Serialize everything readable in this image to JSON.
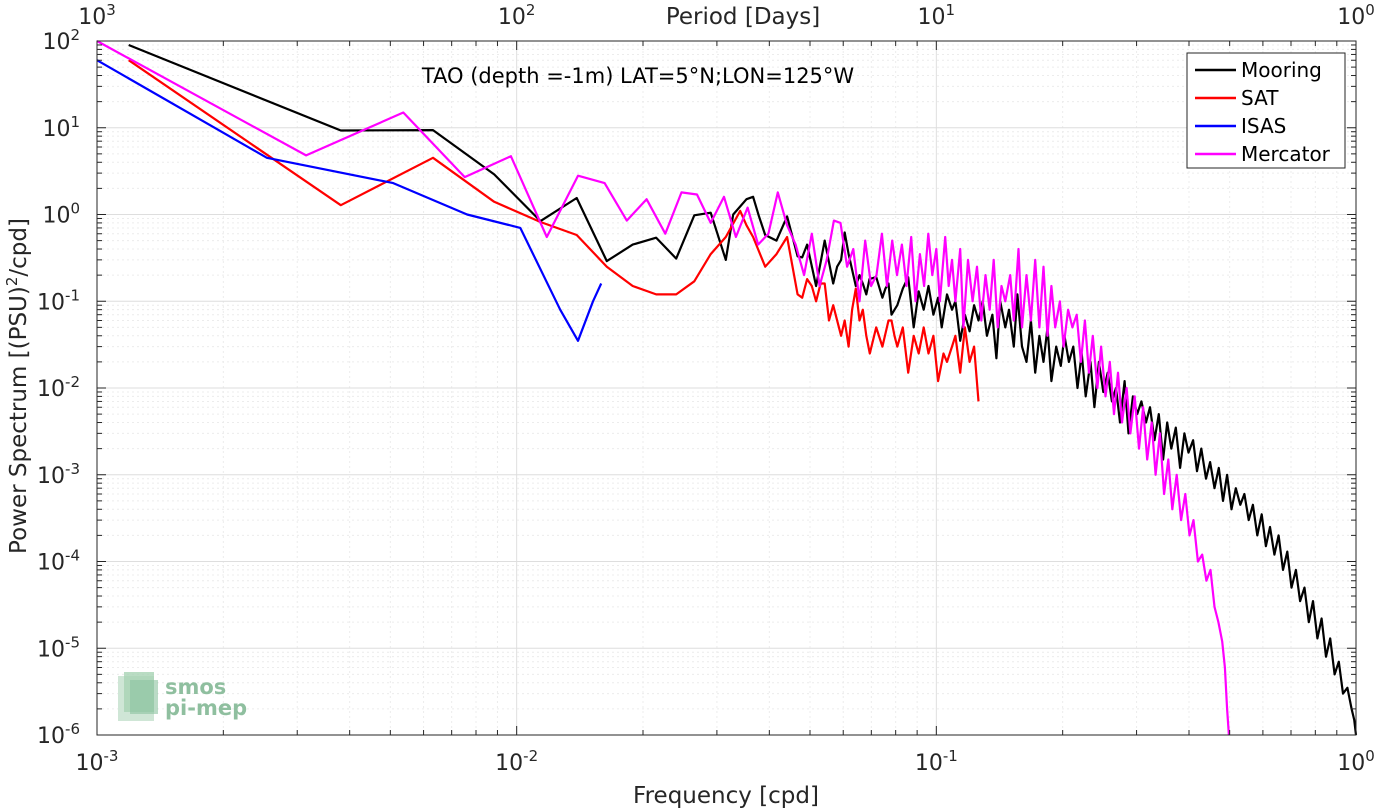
{
  "chart_data": {
    "type": "line",
    "title": "TAO (depth =-1m) LAT=5°N;LON=125°W",
    "xlabel": "Frequency [cpd]",
    "ylabel": "Power Spectrum [(PSU)",
    "ylabel_sup": "2",
    "ylabel_tail": "/cpd]",
    "top_xlabel": "Period [Days]",
    "xscale": "log",
    "yscale": "log",
    "xlim": [
      0.001,
      1
    ],
    "ylim": [
      1e-06,
      100
    ],
    "grid": true,
    "legend_position": "top-right",
    "x_ticks": [
      {
        "base": "10",
        "exp": "-3"
      },
      {
        "base": "10",
        "exp": "-2"
      },
      {
        "base": "10",
        "exp": "-1"
      },
      {
        "base": "10",
        "exp": "0"
      }
    ],
    "top_ticks": [
      {
        "base": "10",
        "exp": "3"
      },
      {
        "base": "10",
        "exp": "2"
      },
      {
        "base": "10",
        "exp": "1"
      },
      {
        "base": "10",
        "exp": "0"
      }
    ],
    "y_ticks": [
      {
        "base": "10",
        "exp": "2"
      },
      {
        "base": "10",
        "exp": "1"
      },
      {
        "base": "10",
        "exp": "0"
      },
      {
        "base": "10",
        "exp": "-1"
      },
      {
        "base": "10",
        "exp": "-2"
      },
      {
        "base": "10",
        "exp": "-3"
      },
      {
        "base": "10",
        "exp": "-4"
      },
      {
        "base": "10",
        "exp": "-5"
      },
      {
        "base": "10",
        "exp": "-6"
      }
    ],
    "series": [
      {
        "name": "Mooring",
        "color": "#000000",
        "x": [
          0.00119,
          0.00381,
          0.00632,
          0.00884,
          0.0114,
          0.0139,
          0.0164,
          0.0189,
          0.0215,
          0.024,
          0.0265,
          0.029,
          0.0315,
          0.0328,
          0.0353,
          0.0366,
          0.0378,
          0.0391,
          0.0416,
          0.0441,
          0.0467,
          0.0479,
          0.0492,
          0.0517,
          0.053,
          0.0542,
          0.0568,
          0.058,
          0.0593,
          0.0605,
          0.0618,
          0.0643,
          0.0656,
          0.0668,
          0.0681,
          0.0693,
          0.0719,
          0.0744,
          0.0756,
          0.0769,
          0.0782,
          0.0807,
          0.0832,
          0.0857,
          0.0883,
          0.0908,
          0.0933,
          0.0958,
          0.0984,
          0.101,
          0.103,
          0.106,
          0.109,
          0.111,
          0.114,
          0.117,
          0.12,
          0.123,
          0.126,
          0.129,
          0.132,
          0.136,
          0.139,
          0.142,
          0.146,
          0.149,
          0.153,
          0.156,
          0.16,
          0.164,
          0.168,
          0.172,
          0.176,
          0.18,
          0.184,
          0.188,
          0.193,
          0.198,
          0.202,
          0.207,
          0.212,
          0.217,
          0.222,
          0.227,
          0.233,
          0.238,
          0.244,
          0.25,
          0.256,
          0.262,
          0.268,
          0.274,
          0.281,
          0.287,
          0.294,
          0.301,
          0.308,
          0.316,
          0.323,
          0.331,
          0.339,
          0.347,
          0.355,
          0.363,
          0.372,
          0.381,
          0.39,
          0.399,
          0.409,
          0.418,
          0.428,
          0.439,
          0.449,
          0.46,
          0.471,
          0.482,
          0.493,
          0.505,
          0.517,
          0.53,
          0.542,
          0.555,
          0.568,
          0.582,
          0.596,
          0.61,
          0.624,
          0.639,
          0.654,
          0.67,
          0.686,
          0.702,
          0.719,
          0.736,
          0.754,
          0.772,
          0.79,
          0.809,
          0.828,
          0.848,
          0.868,
          0.889,
          0.91,
          0.931,
          0.954,
          0.976,
          0.99,
          1.0
        ],
        "values": [
          90,
          9.3,
          9.4,
          2.9,
          0.84,
          1.55,
          0.29,
          0.45,
          0.54,
          0.31,
          0.98,
          1.05,
          0.3,
          1.0,
          1.5,
          1.6,
          0.95,
          0.58,
          0.5,
          0.95,
          0.33,
          0.32,
          0.45,
          0.15,
          0.28,
          0.5,
          0.16,
          0.25,
          0.3,
          0.62,
          0.35,
          0.15,
          0.2,
          0.16,
          0.12,
          0.18,
          0.19,
          0.11,
          0.14,
          0.16,
          0.07,
          0.09,
          0.14,
          0.19,
          0.05,
          0.13,
          0.08,
          0.15,
          0.07,
          0.11,
          0.05,
          0.12,
          0.08,
          0.1,
          0.035,
          0.07,
          0.045,
          0.09,
          0.06,
          0.1,
          0.04,
          0.07,
          0.022,
          0.1,
          0.05,
          0.08,
          0.03,
          0.12,
          0.03,
          0.02,
          0.06,
          0.015,
          0.04,
          0.02,
          0.05,
          0.012,
          0.03,
          0.018,
          0.04,
          0.02,
          0.03,
          0.01,
          0.025,
          0.008,
          0.02,
          0.006,
          0.02,
          0.009,
          0.015,
          0.007,
          0.01,
          0.004,
          0.012,
          0.003,
          0.008,
          0.005,
          0.007,
          0.004,
          0.006,
          0.0025,
          0.005,
          0.0015,
          0.004,
          0.002,
          0.0035,
          0.0012,
          0.003,
          0.0018,
          0.0025,
          0.0011,
          0.002,
          0.0009,
          0.0014,
          0.0007,
          0.0012,
          0.0005,
          0.001,
          0.0004,
          0.0007,
          0.00045,
          0.0006,
          0.0003,
          0.00045,
          0.0002,
          0.00035,
          0.00015,
          0.00025,
          0.00012,
          0.0002,
          8e-05,
          0.00013,
          5e-05,
          8e-05,
          3.5e-05,
          5e-05,
          2e-05,
          3.5e-05,
          1.3e-05,
          2.2e-05,
          8e-06,
          1.3e-05,
          5e-06,
          7e-06,
          3e-06,
          3.5e-06,
          2e-06,
          1.5e-06,
          1e-06
        ]
      },
      {
        "name": "SAT",
        "color": "#ff0000",
        "x": [
          0.00119,
          0.00381,
          0.00632,
          0.00884,
          0.0114,
          0.0139,
          0.0164,
          0.0189,
          0.0215,
          0.024,
          0.0265,
          0.029,
          0.0315,
          0.0341,
          0.0353,
          0.0366,
          0.0391,
          0.0416,
          0.0441,
          0.0467,
          0.0479,
          0.0492,
          0.0505,
          0.0517,
          0.053,
          0.0542,
          0.0555,
          0.0568,
          0.0593,
          0.0605,
          0.0618,
          0.063,
          0.0643,
          0.0656,
          0.0668,
          0.0681,
          0.0694,
          0.0719,
          0.0744,
          0.0769,
          0.0782,
          0.0795,
          0.0807,
          0.0832,
          0.0857,
          0.0883,
          0.0908,
          0.0933,
          0.0958,
          0.0984,
          0.101,
          0.104,
          0.106,
          0.109,
          0.111,
          0.114,
          0.117,
          0.12,
          0.123,
          0.126
        ],
        "values": [
          60,
          1.28,
          4.5,
          1.4,
          0.82,
          0.58,
          0.25,
          0.15,
          0.12,
          0.12,
          0.17,
          0.35,
          0.55,
          1.1,
          0.75,
          0.55,
          0.25,
          0.35,
          0.55,
          0.12,
          0.11,
          0.18,
          0.15,
          0.1,
          0.16,
          0.16,
          0.06,
          0.09,
          0.04,
          0.06,
          0.03,
          0.08,
          0.14,
          0.06,
          0.08,
          0.04,
          0.025,
          0.05,
          0.03,
          0.06,
          0.06,
          0.04,
          0.03,
          0.05,
          0.015,
          0.04,
          0.025,
          0.05,
          0.025,
          0.04,
          0.012,
          0.025,
          0.02,
          0.03,
          0.04,
          0.015,
          0.05,
          0.02,
          0.03,
          0.007
        ]
      },
      {
        "name": "ISAS",
        "color": "#0000ff",
        "x": [
          0.001,
          0.00254,
          0.00508,
          0.00762,
          0.0102,
          0.0127,
          0.014,
          0.0152,
          0.0159
        ],
        "values": [
          60,
          4.5,
          2.3,
          1.0,
          0.7,
          0.08,
          0.035,
          0.1,
          0.16
        ]
      },
      {
        "name": "Mercator",
        "color": "#ff00ff",
        "x": [
          0.001,
          0.00315,
          0.00537,
          0.00752,
          0.00969,
          0.0118,
          0.014,
          0.0162,
          0.0183,
          0.0204,
          0.0226,
          0.0247,
          0.0269,
          0.029,
          0.0312,
          0.0333,
          0.0355,
          0.0376,
          0.0398,
          0.0419,
          0.0441,
          0.0462,
          0.0484,
          0.0505,
          0.0527,
          0.0548,
          0.057,
          0.0591,
          0.0613,
          0.0634,
          0.0656,
          0.0677,
          0.0699,
          0.072,
          0.0742,
          0.0763,
          0.0785,
          0.0806,
          0.0828,
          0.0849,
          0.0871,
          0.0892,
          0.0914,
          0.0935,
          0.0957,
          0.0978,
          0.1,
          0.102,
          0.105,
          0.107,
          0.109,
          0.111,
          0.114,
          0.116,
          0.119,
          0.122,
          0.125,
          0.128,
          0.131,
          0.134,
          0.137,
          0.14,
          0.143,
          0.146,
          0.15,
          0.153,
          0.157,
          0.16,
          0.164,
          0.168,
          0.172,
          0.176,
          0.18,
          0.184,
          0.188,
          0.192,
          0.197,
          0.201,
          0.206,
          0.211,
          0.216,
          0.221,
          0.226,
          0.231,
          0.236,
          0.242,
          0.247,
          0.253,
          0.259,
          0.265,
          0.271,
          0.277,
          0.284,
          0.29,
          0.297,
          0.304,
          0.311,
          0.318,
          0.326,
          0.333,
          0.341,
          0.349,
          0.357,
          0.365,
          0.374,
          0.383,
          0.392,
          0.401,
          0.41,
          0.42,
          0.43,
          0.44,
          0.45,
          0.46,
          0.47,
          0.48,
          0.487,
          0.493,
          0.498
        ],
        "values": [
          100,
          4.8,
          15,
          2.7,
          4.7,
          0.55,
          2.8,
          2.3,
          0.85,
          1.5,
          0.6,
          1.8,
          1.7,
          0.8,
          1.6,
          0.55,
          1.2,
          0.45,
          0.6,
          1.8,
          0.75,
          0.45,
          0.2,
          0.6,
          0.15,
          0.3,
          0.85,
          0.8,
          0.25,
          0.4,
          0.1,
          0.5,
          0.15,
          0.2,
          0.6,
          0.15,
          0.5,
          0.2,
          0.45,
          0.15,
          0.55,
          0.1,
          0.35,
          0.15,
          0.6,
          0.2,
          0.4,
          0.1,
          0.55,
          0.15,
          0.3,
          0.1,
          0.4,
          0.05,
          0.3,
          0.1,
          0.25,
          0.06,
          0.2,
          0.08,
          0.3,
          0.05,
          0.15,
          0.1,
          0.2,
          0.06,
          0.4,
          0.05,
          0.2,
          0.06,
          0.3,
          0.05,
          0.25,
          0.04,
          0.15,
          0.05,
          0.1,
          0.03,
          0.08,
          0.05,
          0.07,
          0.02,
          0.06,
          0.015,
          0.04,
          0.01,
          0.03,
          0.008,
          0.02,
          0.005,
          0.015,
          0.004,
          0.01,
          0.003,
          0.008,
          0.002,
          0.006,
          0.0015,
          0.004,
          0.001,
          0.003,
          0.0006,
          0.0015,
          0.0004,
          0.001,
          0.0003,
          0.0006,
          0.0002,
          0.0003,
          0.0001,
          0.00012,
          6e-05,
          8e-05,
          3e-05,
          2e-05,
          1.2e-05,
          6e-06,
          2e-06,
          1e-06
        ]
      }
    ]
  },
  "logo": {
    "line1": "smos",
    "line2": "pi-mep"
  }
}
